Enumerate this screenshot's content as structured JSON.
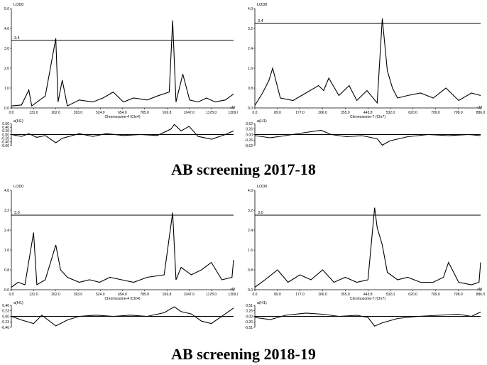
{
  "captions": [
    "AB screening 2017-18",
    "AB screening 2018-19"
  ],
  "chart_data": [
    {
      "type": "line",
      "section": "AB screening 2017-18",
      "ylabel": "LOD0",
      "xlabel": "Chromosome-4 (Chr4)",
      "xunit": "cM",
      "ylim": [
        0,
        5.0
      ],
      "yticks": [
        "0.0",
        "1.0",
        "2.0",
        "3.0",
        "4.0",
        "5.0"
      ],
      "xlim": [
        0,
        1309
      ],
      "xticks": [
        "0.0",
        "131.0",
        "262.0",
        "393.0",
        "524.0",
        "654.0",
        "785.0",
        "916.8",
        "1047.0",
        "1178.0",
        "1309.0"
      ],
      "threshold": 3.4,
      "threshold_label": "3.4",
      "effect_label": "a(H1)",
      "effect_ylim": [
        -0.6,
        0.6
      ],
      "effect_ticks": [
        "0.60",
        "0.40",
        "0.20",
        "0.00",
        "-0.20",
        "-0.40",
        "-0.60"
      ],
      "lod": {
        "x": [
          0,
          60,
          103,
          120,
          200,
          262,
          275,
          300,
          330,
          400,
          480,
          540,
          600,
          660,
          720,
          800,
          860,
          930,
          950,
          970,
          1010,
          1050,
          1100,
          1150,
          1200,
          1260,
          1309
        ],
        "y": [
          0.1,
          0.15,
          0.9,
          0.1,
          0.6,
          3.5,
          0.3,
          1.4,
          0.1,
          0.4,
          0.3,
          0.5,
          0.8,
          0.3,
          0.5,
          0.4,
          0.6,
          0.8,
          4.4,
          0.3,
          1.7,
          0.4,
          0.3,
          0.5,
          0.3,
          0.4,
          0.7
        ]
      },
      "effect": {
        "x": [
          0,
          60,
          103,
          150,
          200,
          262,
          300,
          400,
          480,
          560,
          660,
          760,
          860,
          940,
          960,
          1000,
          1047,
          1100,
          1180,
          1260,
          1309
        ],
        "y": [
          0.0,
          -0.1,
          0.05,
          -0.15,
          -0.05,
          -0.45,
          -0.2,
          0.05,
          -0.1,
          0.05,
          -0.05,
          0.0,
          -0.05,
          0.3,
          0.55,
          0.2,
          0.45,
          -0.1,
          -0.25,
          0.0,
          0.2
        ]
      }
    },
    {
      "type": "line",
      "section": "AB screening 2017-18",
      "ylabel": "LOD0",
      "xlabel": "Chromosome-7 (Chr7)",
      "xunit": "cM",
      "ylim": [
        0,
        4.0
      ],
      "yticks": [
        "0.0",
        "0.8",
        "1.6",
        "2.4",
        "3.2",
        "4.0"
      ],
      "xlim": [
        0,
        886
      ],
      "xticks": [
        "0.0",
        "89.0",
        "177.0",
        "266.0",
        "355.0",
        "443.8",
        "532.0",
        "620.0",
        "709.0",
        "798.0",
        "886.0"
      ],
      "threshold": 3.4,
      "threshold_label": "3.4",
      "effect_label": "a(H1)",
      "effect_ylim": [
        -0.52,
        0.52
      ],
      "effect_ticks": [
        "0.52",
        "0.26",
        "0.00",
        "-0.26",
        "-0.52"
      ],
      "lod": {
        "x": [
          0,
          30,
          55,
          70,
          100,
          150,
          200,
          250,
          270,
          290,
          330,
          370,
          400,
          440,
          480,
          500,
          520,
          540,
          560,
          600,
          650,
          700,
          750,
          800,
          850,
          886
        ],
        "y": [
          0.1,
          0.6,
          1.1,
          1.6,
          0.4,
          0.3,
          0.6,
          0.9,
          0.7,
          1.2,
          0.5,
          0.9,
          0.3,
          0.7,
          0.2,
          3.6,
          1.5,
          0.8,
          0.4,
          0.5,
          0.6,
          0.4,
          0.8,
          0.3,
          0.6,
          0.5
        ]
      },
      "effect": {
        "x": [
          0,
          60,
          120,
          200,
          260,
          300,
          360,
          420,
          480,
          500,
          530,
          600,
          680,
          760,
          840,
          886
        ],
        "y": [
          -0.05,
          -0.15,
          -0.05,
          0.1,
          0.2,
          0.0,
          -0.1,
          -0.05,
          -0.2,
          -0.5,
          -0.3,
          -0.1,
          0.0,
          -0.05,
          0.0,
          -0.05
        ]
      }
    },
    {
      "type": "line",
      "section": "AB screening 2018-19",
      "ylabel": "LOD0",
      "xlabel": "Chromosome-4 (Chr4)",
      "xunit": "cM",
      "ylim": [
        0,
        4.0
      ],
      "yticks": [
        "0.0",
        "0.8",
        "1.6",
        "2.4",
        "3.2",
        "4.0"
      ],
      "xlim": [
        0,
        1309
      ],
      "xticks": [
        "0.0",
        "131.0",
        "262.0",
        "393.0",
        "524.0",
        "654.0",
        "785.0",
        "916.8",
        "1047.0",
        "1178.0",
        "1309.0"
      ],
      "threshold": 3.0,
      "threshold_label": "3.0",
      "effect_label": "a(H1)",
      "effect_ylim": [
        -0.46,
        0.46
      ],
      "effect_ticks": [
        "0.46",
        "0.23",
        "0.00",
        "-0.23",
        "-0.46"
      ],
      "lod": {
        "x": [
          0,
          40,
          80,
          131,
          150,
          200,
          262,
          290,
          330,
          400,
          460,
          520,
          580,
          650,
          720,
          800,
          900,
          950,
          970,
          1000,
          1060,
          1120,
          1178,
          1240,
          1300,
          1309
        ],
        "y": [
          0.1,
          0.3,
          0.2,
          2.3,
          0.2,
          0.4,
          1.8,
          0.8,
          0.5,
          0.3,
          0.4,
          0.3,
          0.5,
          0.4,
          0.3,
          0.5,
          0.6,
          3.1,
          0.4,
          0.9,
          0.6,
          0.8,
          1.1,
          0.4,
          0.5,
          1.2
        ]
      },
      "effect": {
        "x": [
          0,
          60,
          131,
          180,
          262,
          330,
          400,
          500,
          600,
          700,
          800,
          900,
          960,
          1000,
          1060,
          1120,
          1178,
          1260,
          1309
        ],
        "y": [
          0.0,
          -0.15,
          -0.3,
          0.05,
          -0.4,
          -0.15,
          0.0,
          0.05,
          0.0,
          0.05,
          0.0,
          0.15,
          0.4,
          0.2,
          0.1,
          -0.2,
          -0.3,
          0.1,
          0.35
        ]
      }
    },
    {
      "type": "line",
      "section": "AB screening 2018-19",
      "ylabel": "LOD0",
      "xlabel": "Chromosome-7 (Chr7)",
      "xunit": "cM",
      "ylim": [
        0,
        4.0
      ],
      "yticks": [
        "0.0",
        "0.8",
        "1.6",
        "2.4",
        "3.2",
        "4.0"
      ],
      "xlim": [
        0,
        886
      ],
      "xticks": [
        "0.0",
        "89.0",
        "177.0",
        "266.0",
        "355.0",
        "443.8",
        "532.0",
        "620.0",
        "709.0",
        "798.0",
        "886.0"
      ],
      "threshold": 3.0,
      "threshold_label": "3.0",
      "effect_label": "a(H1)",
      "effect_ylim": [
        -0.51,
        0.51
      ],
      "effect_ticks": [
        "0.51",
        "0.26",
        "0.00",
        "-0.26",
        "-0.51"
      ],
      "lod": {
        "x": [
          0,
          40,
          89,
          130,
          177,
          220,
          266,
          310,
          355,
          400,
          443.8,
          470,
          480,
          500,
          520,
          560,
          600,
          650,
          700,
          740,
          760,
          800,
          850,
          880,
          886
        ],
        "y": [
          0.1,
          0.4,
          0.8,
          0.3,
          0.6,
          0.4,
          0.8,
          0.3,
          0.5,
          0.3,
          0.4,
          3.3,
          2.5,
          1.8,
          0.7,
          0.4,
          0.5,
          0.3,
          0.3,
          0.5,
          1.1,
          0.3,
          0.2,
          0.3,
          1.1
        ]
      },
      "effect": {
        "x": [
          0,
          60,
          120,
          200,
          266,
          330,
          400,
          443.8,
          470,
          500,
          560,
          640,
          720,
          798,
          850,
          886
        ],
        "y": [
          -0.05,
          -0.15,
          0.05,
          0.15,
          0.1,
          0.0,
          0.05,
          -0.05,
          -0.45,
          -0.3,
          -0.1,
          0.0,
          0.05,
          0.1,
          0.0,
          0.2
        ]
      }
    }
  ]
}
